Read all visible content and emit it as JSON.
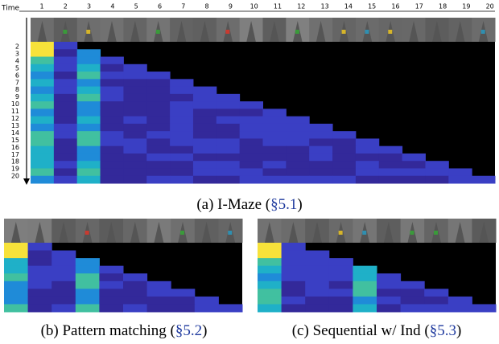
{
  "top_panel": {
    "axis_title": "Time",
    "time_labels": [
      1,
      2,
      3,
      4,
      5,
      6,
      7,
      8,
      9,
      10,
      11,
      12,
      13,
      14,
      15,
      16,
      17,
      18,
      19,
      20
    ],
    "row_labels": [
      2,
      3,
      4,
      5,
      6,
      7,
      8,
      9,
      10,
      11,
      12,
      13,
      14,
      15,
      16,
      17,
      18,
      19,
      20
    ]
  },
  "captions": [
    {
      "text": "(a) I-Maze (",
      "ref": "§5.1",
      "close": ")"
    },
    {
      "text": "(b) Pattern matching (",
      "ref": "§5.2",
      "close": ")"
    },
    {
      "text": "(c) Sequential w/ Ind (",
      "ref": "§5.3",
      "close": ")"
    }
  ]
}
